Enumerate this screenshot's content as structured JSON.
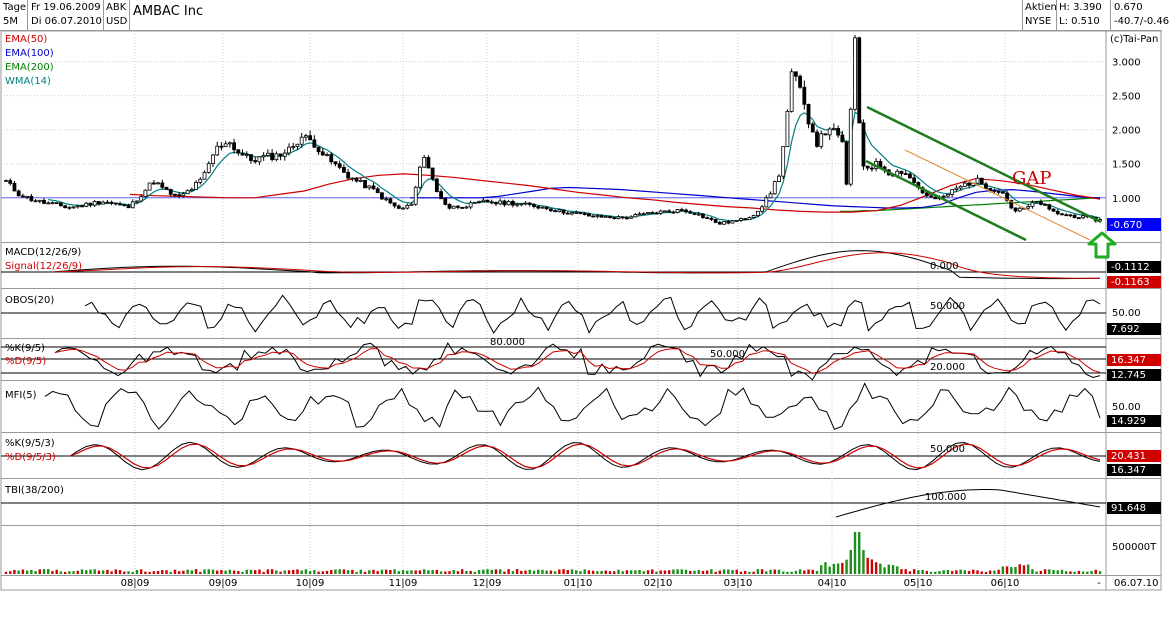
{
  "header": {
    "period_label": "Tage",
    "period_value": "5M",
    "date_from": "Fr 19.06.2009",
    "date_to": "Di 06.07.2010",
    "symbol": "ABK",
    "currency": "USD",
    "title": "AMBAC Inc",
    "asset_type": "Aktien",
    "exchange": "NYSE",
    "high": "H: 3.390",
    "low": "L: 0.510",
    "last": "0.670",
    "change": "-40.7/-0.46"
  },
  "copyright": "(c)Tai-Pan",
  "colors": {
    "ema50": "#cc0000",
    "ema100": "#0000cc",
    "ema200": "#008000",
    "wma14": "#008080",
    "channel": "#1e7d1e",
    "last_price_badge": "#0000ff",
    "badge_dark": "#000000",
    "badge_red": "#d00000",
    "volume_up": "#1a8f1a",
    "volume_down": "#cc0000",
    "gap_text": "#cc0000",
    "arrow": "#22aa22"
  },
  "annotations": {
    "gap": "GAP"
  },
  "chart_data": [
    {
      "type": "candlestick",
      "title": "AMBAC Inc",
      "legend": [
        "EMA(50)",
        "EMA(100)",
        "EMA(200)",
        "WMA(14)"
      ],
      "y_ticks": [
        "3.000",
        "2.500",
        "2.000",
        "1.500",
        "1.000"
      ],
      "ylim": [
        0.35,
        3.45
      ],
      "last_value_label": "0.670",
      "reference_line": 1.0,
      "close": [
        1.24,
        1.06,
        0.98,
        0.93,
        0.9,
        0.86,
        0.88,
        0.92,
        0.95,
        0.9,
        0.86,
        1.05,
        1.25,
        1.1,
        1.0,
        1.12,
        1.28,
        1.7,
        1.85,
        1.65,
        1.55,
        1.6,
        1.62,
        1.7,
        1.9,
        1.82,
        1.6,
        1.45,
        1.3,
        1.2,
        1.1,
        0.95,
        0.83,
        0.9,
        1.65,
        1.1,
        0.85,
        0.88,
        0.9,
        0.95,
        0.92,
        0.93,
        0.9,
        0.88,
        0.85,
        0.8,
        0.78,
        0.75,
        0.72,
        0.72,
        0.7,
        0.73,
        0.76,
        0.79,
        0.8,
        0.82,
        0.78,
        0.7,
        0.62,
        0.65,
        0.68,
        0.78,
        1.0,
        1.4,
        2.9,
        2.3,
        1.8,
        2.05,
        1.8,
        1.6,
        1.45,
        1.5,
        1.35,
        1.4,
        1.2,
        1.0,
        0.98,
        1.1,
        1.2,
        1.25,
        1.15,
        1.1,
        0.8,
        0.85,
        0.95,
        0.8,
        0.75,
        0.73,
        0.7,
        0.67
      ],
      "indicators": {
        "EMA(50)": [
          1.05,
          1.03,
          1.02,
          1.01,
          1.0,
          1.0,
          1.05,
          1.1,
          1.2,
          1.28,
          1.33,
          1.35,
          1.33,
          1.3,
          1.26,
          1.22,
          1.18,
          1.13,
          1.08,
          1.04,
          1.0,
          0.97,
          0.93,
          0.9,
          0.87,
          0.85,
          0.82,
          0.8,
          0.79,
          0.79,
          0.81,
          0.89,
          1.03,
          1.18,
          1.28,
          1.25,
          1.2,
          1.12,
          1.04,
          0.98
        ],
        "EMA(100)": [
          1.0,
          1.0,
          1.0,
          1.0,
          1.0,
          1.02,
          1.06,
          1.1,
          1.14,
          1.15,
          1.14,
          1.13,
          1.12,
          1.1,
          1.08,
          1.06,
          1.04,
          1.02,
          1.0,
          0.98,
          0.96,
          0.94,
          0.92,
          0.9,
          0.88,
          0.87,
          0.86,
          0.85,
          0.85,
          0.86,
          0.9,
          1.0,
          1.08,
          1.11,
          1.12,
          1.1,
          1.07,
          1.04,
          1.01,
          1.0
        ],
        "EMA(200)": [
          0.8,
          0.8,
          0.81,
          0.81,
          0.82,
          0.83,
          0.84,
          0.85,
          0.86,
          0.87,
          0.88,
          0.89,
          0.9,
          0.91,
          0.92,
          0.93,
          0.94,
          0.95,
          0.96,
          0.97,
          0.98,
          0.99,
          1.0
        ]
      }
    },
    {
      "type": "line",
      "title": "MACD(12/26/9)",
      "series": [
        {
          "name": "MACD(12/26/9)"
        },
        {
          "name": "Signal(12/26/9)"
        }
      ],
      "level_label": "0.000",
      "last_values": [
        "-0.1112",
        "-0.1163"
      ]
    },
    {
      "type": "line",
      "title": "OBOS(20)",
      "series": [
        {
          "name": "OBOS(20)"
        }
      ],
      "level_label": "50.000",
      "y_ticks": [
        "50.00"
      ],
      "last_values": [
        "7.692"
      ]
    },
    {
      "type": "line",
      "title": "Stochastic",
      "series": [
        {
          "name": "%K(9/5)"
        },
        {
          "name": "%D(9/5)"
        }
      ],
      "level_labels": [
        "80.000",
        "50.000",
        "20.000"
      ],
      "last_values": [
        "16.347",
        "12.745"
      ]
    },
    {
      "type": "line",
      "title": "MFI(5)",
      "series": [
        {
          "name": "MFI(5)"
        }
      ],
      "y_ticks": [
        "50.00"
      ],
      "last_values": [
        "14.929"
      ]
    },
    {
      "type": "line",
      "title": "Slow Stochastic",
      "series": [
        {
          "name": "%K(9/5/3)"
        },
        {
          "name": "%D(9/5/3)"
        }
      ],
      "level_label": "50.000",
      "last_values": [
        "20.431",
        "16.347"
      ]
    },
    {
      "type": "line",
      "title": "TBI(38/200)",
      "series": [
        {
          "name": "TBI(38/200)"
        }
      ],
      "level_label": "100.000",
      "last_values": [
        "91.648"
      ]
    },
    {
      "type": "bar",
      "title": "Volume",
      "y_ticks": [
        "500000T"
      ],
      "spike_index": 141,
      "spike_value": 1.0
    }
  ],
  "x_axis": {
    "labels": [
      "08|09",
      "09|09",
      "10|09",
      "11|09",
      "12|09",
      "01|10",
      "02|10",
      "03|10",
      "04|10",
      "05|10",
      "06|10"
    ],
    "end_label": "06.07.10",
    "end_marker": "-"
  }
}
